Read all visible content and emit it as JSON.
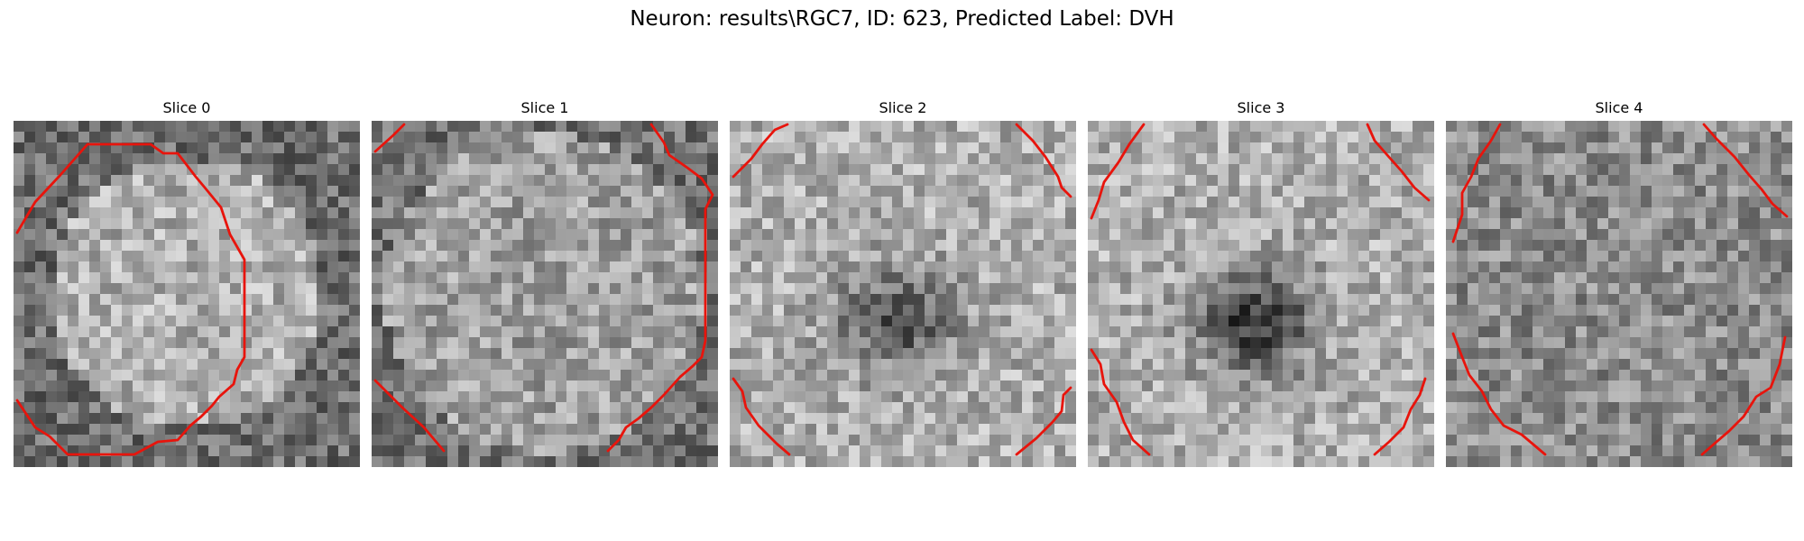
{
  "figure_title": "Neuron: results\\RGC7, ID: 623, Predicted Label: DVH",
  "colormap": "gray",
  "contour_color": "#e8140c",
  "slices": [
    {
      "title": "Slice 0",
      "seed": 11,
      "pattern": "blob"
    },
    {
      "title": "Slice 1",
      "seed": 29,
      "pattern": "flat"
    },
    {
      "title": "Slice 2",
      "seed": 47,
      "pattern": "center-dark"
    },
    {
      "title": "Slice 3",
      "seed": 71,
      "pattern": "center-dark-strong"
    },
    {
      "title": "Slice 4",
      "seed": 93,
      "pattern": "flat-dark"
    }
  ]
}
